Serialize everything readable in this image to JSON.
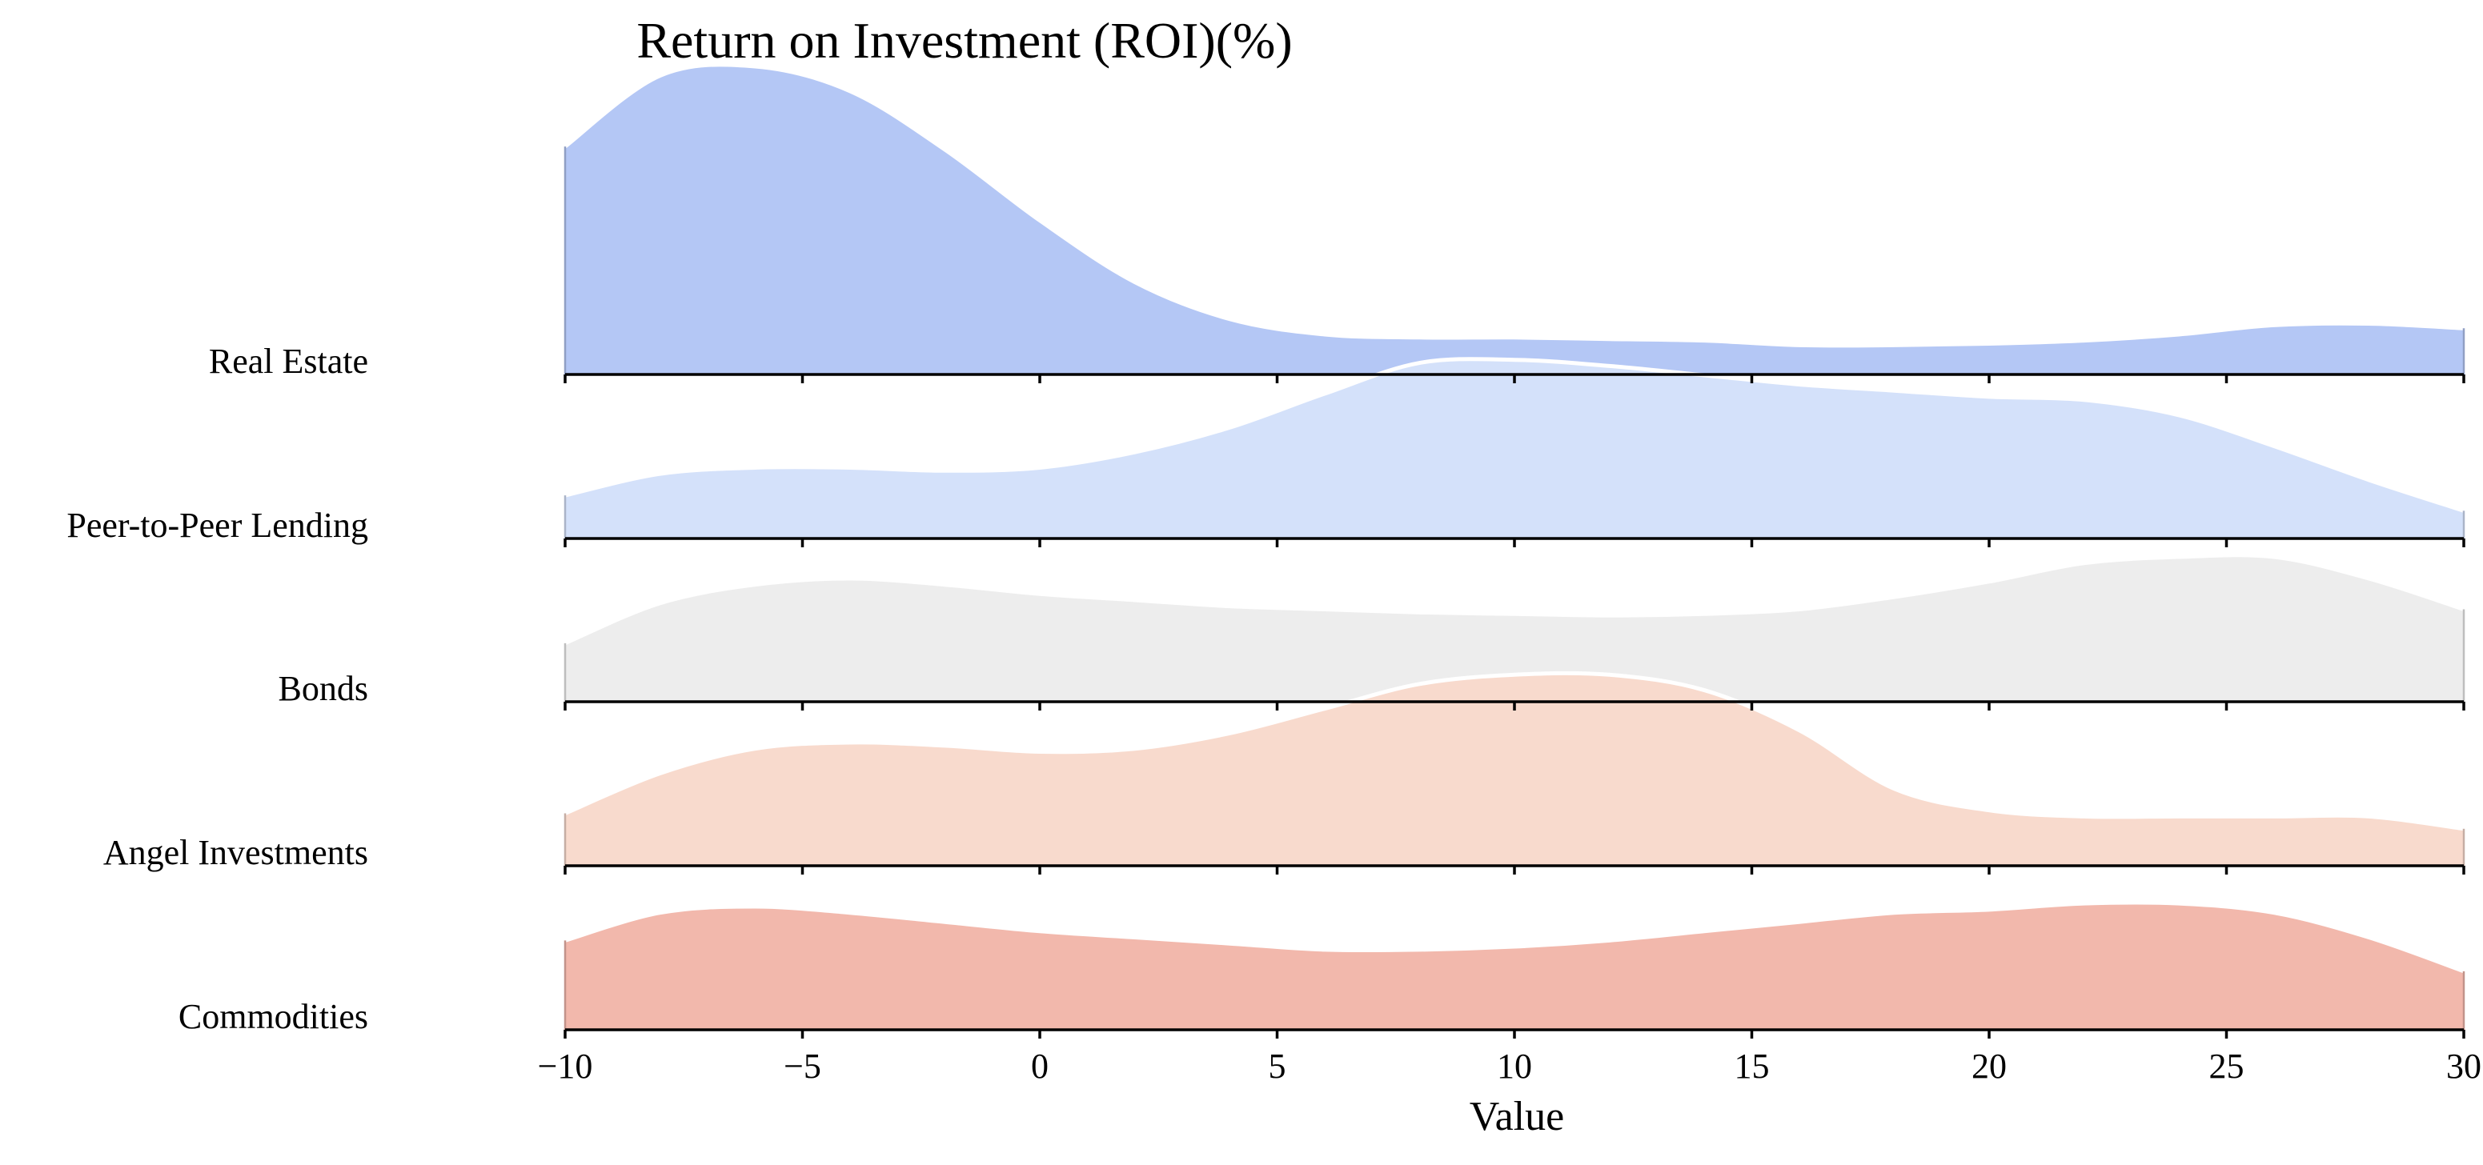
{
  "chart_data": {
    "type": "ridgeline",
    "title": "Return on Investment (ROI)(%)",
    "xlabel": "Value",
    "ylabel": "",
    "xlim": [
      -10,
      30
    ],
    "x_ticks": [
      -10,
      -5,
      0,
      5,
      10,
      15,
      20,
      25,
      30
    ],
    "x_tick_labels": [
      "−10",
      "−5",
      "0",
      "5",
      "10",
      "15",
      "20",
      "25",
      "30"
    ],
    "grid": false,
    "legend": "none",
    "x": [
      -10,
      -8,
      -6,
      -4,
      -2,
      0,
      2,
      4,
      6,
      8,
      10,
      12,
      14,
      16,
      18,
      20,
      22,
      24,
      26,
      28,
      30
    ],
    "series": [
      {
        "name": "Real Estate",
        "color": "#b4c7f5",
        "values": [
          0.74,
          0.97,
          1.0,
          0.92,
          0.73,
          0.5,
          0.3,
          0.18,
          0.13,
          0.12,
          0.12,
          0.115,
          0.11,
          0.095,
          0.095,
          0.1,
          0.11,
          0.13,
          0.16,
          0.165,
          0.15
        ]
      },
      {
        "name": "Peer-to-Peer Lending",
        "color": "#d4e1fa",
        "values": [
          0.14,
          0.21,
          0.23,
          0.23,
          0.22,
          0.23,
          0.28,
          0.36,
          0.47,
          0.57,
          0.58,
          0.56,
          0.53,
          0.5,
          0.48,
          0.46,
          0.45,
          0.4,
          0.3,
          0.19,
          0.09
        ]
      },
      {
        "name": "Bonds",
        "color": "#ededed",
        "values": [
          0.19,
          0.32,
          0.38,
          0.4,
          0.38,
          0.35,
          0.33,
          0.31,
          0.3,
          0.29,
          0.285,
          0.28,
          0.285,
          0.3,
          0.34,
          0.39,
          0.45,
          0.47,
          0.47,
          0.4,
          0.3
        ]
      },
      {
        "name": "Angel Investments",
        "color": "#f8dacd",
        "values": [
          0.17,
          0.3,
          0.38,
          0.4,
          0.39,
          0.37,
          0.38,
          0.43,
          0.51,
          0.59,
          0.62,
          0.62,
          0.57,
          0.44,
          0.25,
          0.18,
          0.16,
          0.16,
          0.16,
          0.16,
          0.12
        ]
      },
      {
        "name": "Commodities",
        "color": "#f2b8ac",
        "values": [
          0.29,
          0.38,
          0.4,
          0.38,
          0.35,
          0.32,
          0.3,
          0.28,
          0.26,
          0.26,
          0.27,
          0.29,
          0.32,
          0.35,
          0.38,
          0.39,
          0.41,
          0.41,
          0.38,
          0.3,
          0.19
        ]
      }
    ]
  }
}
